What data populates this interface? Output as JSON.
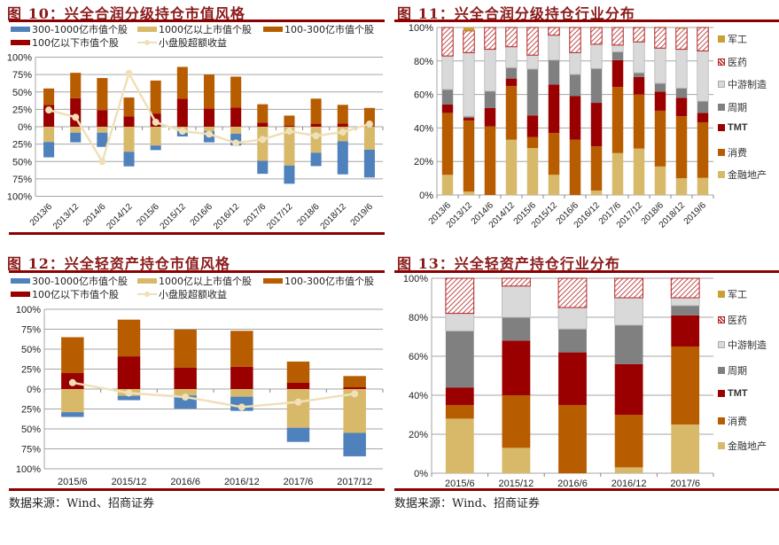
{
  "source_text": "数据来源：Wind、招商证券",
  "colors": {
    "blue": "#4f81bd",
    "gold": "#d8b96a",
    "orange": "#b85c00",
    "darkred": "#9a0000",
    "line": "#efe0b9",
    "military": "#c9a032",
    "pharma_border": "#b22222",
    "midstream": "#d9d9d9",
    "cycle": "#808080",
    "rule": "#8b0000"
  },
  "chart_data": [
    {
      "id": "fig10",
      "type": "bar",
      "stacked": "diverging",
      "title": "图 10：兴全合润分级持仓市值风格",
      "legend": [
        "300-1000亿市值个股",
        "1000亿以上市值个股",
        "100-300亿市值个股",
        "100亿以下市值个股",
        "小盘股超额收益"
      ],
      "categories": [
        "2013/6",
        "2013/12",
        "2014/6",
        "2014/12",
        "2015/6",
        "2015/12",
        "2016/6",
        "2016/12",
        "2017/6",
        "2017/12",
        "2018/6",
        "2018/12",
        "2019/6"
      ],
      "yticks": [
        "100%",
        "75%",
        "50%",
        "25%",
        "0%",
        "25%",
        "50%",
        "75%",
        "100%"
      ],
      "ylim": [
        -100,
        100
      ],
      "series": [
        {
          "name": "100亿以下市值个股",
          "side": "up",
          "values": [
            31.5,
            41,
            24,
            15,
            19,
            40.4,
            26,
            27.7,
            6,
            1.7,
            4.3,
            4.7,
            0.5
          ]
        },
        {
          "name": "100-300亿市值个股",
          "side": "up",
          "values": [
            23.5,
            36.5,
            46,
            27,
            47.4,
            45.6,
            49,
            44.3,
            26.3,
            14.3,
            36.1,
            26.8,
            26.5
          ]
        },
        {
          "name": "1000亿以上市值个股",
          "side": "down",
          "values": [
            22,
            8.5,
            8.5,
            36,
            27,
            6.4,
            6.4,
            10,
            49,
            55.7,
            37.4,
            21,
            33
          ]
        },
        {
          "name": "300-1000亿市值个股",
          "side": "down",
          "values": [
            22,
            14,
            20.5,
            21,
            6.6,
            7.6,
            16.1,
            17,
            18.7,
            26.3,
            19.2,
            47.5,
            40
          ]
        },
        {
          "name": "小盘股超额收益",
          "type": "line",
          "values": [
            24,
            13.6,
            -50,
            76.6,
            6.4,
            -6.4,
            -10.6,
            -23.4,
            -18.3,
            -6.4,
            -13,
            -7.7,
            3.8
          ]
        }
      ]
    },
    {
      "id": "fig11",
      "type": "bar",
      "stacked": "percent",
      "title": "图 11：兴全合润分级持仓行业分布",
      "legend": [
        "军工",
        "医药",
        "中游制造",
        "周期",
        "TMT",
        "消费",
        "金融地产"
      ],
      "categories": [
        "2013/6",
        "2013/12",
        "2014/6",
        "2014/12",
        "2015/6",
        "2015/12",
        "2016/6",
        "2016/12",
        "2017/6",
        "2017/12",
        "2018/6",
        "2018/12",
        "2019/6"
      ],
      "yticks": [
        "0%",
        "20%",
        "40%",
        "60%",
        "80%",
        "100%"
      ],
      "ylim": [
        0,
        100
      ],
      "series": [
        {
          "name": "金融地产",
          "values": [
            12,
            2,
            0,
            33,
            28,
            12,
            0,
            2.6,
            25,
            27.7,
            17,
            10,
            10.2
          ]
        },
        {
          "name": "消费",
          "values": [
            37,
            42.5,
            41,
            32,
            6.5,
            25,
            33,
            26.4,
            39.5,
            32.3,
            33.3,
            37,
            33.2
          ]
        },
        {
          "name": "TMT",
          "values": [
            5,
            1.5,
            11,
            4.5,
            13,
            29,
            26,
            26,
            16,
            10.5,
            11.4,
            11,
            5.6
          ]
        },
        {
          "name": "周期",
          "values": [
            9,
            1,
            10,
            6.5,
            27.7,
            14.6,
            13,
            20.5,
            5,
            2.5,
            5,
            5.8,
            7
          ]
        },
        {
          "name": "中游制造",
          "values": [
            20,
            38,
            25,
            12.5,
            8.3,
            14.8,
            13,
            14.5,
            4,
            18.4,
            21,
            23.2,
            30
          ]
        },
        {
          "name": "医药",
          "values": [
            17,
            13,
            13,
            11.5,
            16.5,
            4.6,
            15,
            10,
            10.5,
            8.6,
            12.3,
            12.6,
            14
          ]
        },
        {
          "name": "军工",
          "values": [
            0,
            2,
            0,
            0,
            0,
            0,
            0,
            0,
            0,
            0,
            0,
            0.4,
            0
          ]
        }
      ]
    },
    {
      "id": "fig12",
      "type": "bar",
      "stacked": "diverging",
      "title": "图 12：兴全轻资产持仓市值风格",
      "legend": [
        "300-1000亿市值个股",
        "1000亿以上市值个股",
        "100-300亿市值个股",
        "100亿以下市值个股",
        "小盘股超额收益"
      ],
      "categories": [
        "2015/6",
        "2015/12",
        "2016/6",
        "2016/12",
        "2017/6",
        "2017/12"
      ],
      "yticks": [
        "100%",
        "75%",
        "50%",
        "25%",
        "0%",
        "25%",
        "50%",
        "75%",
        "100%"
      ],
      "ylim": [
        -100,
        100
      ],
      "series": [
        {
          "name": "100亿以下市值个股",
          "side": "up",
          "values": [
            20,
            41,
            27,
            28,
            7.8,
            2.2
          ]
        },
        {
          "name": "100-300亿市值个股",
          "side": "up",
          "values": [
            45,
            46,
            47.5,
            45,
            26.6,
            14.1
          ]
        },
        {
          "name": "1000亿以上市值个股",
          "side": "down",
          "values": [
            29,
            8.5,
            8,
            9.6,
            48.5,
            55
          ]
        },
        {
          "name": "300-1000亿市值个股",
          "side": "down",
          "values": [
            6,
            5.5,
            16.5,
            17.8,
            17.8,
            29.4
          ]
        },
        {
          "name": "小盘股超额收益",
          "type": "line",
          "values": [
            8,
            -5,
            -10,
            -22.6,
            -16.3,
            -6
          ]
        }
      ]
    },
    {
      "id": "fig13",
      "type": "bar",
      "stacked": "percent",
      "title": "图 13：兴全轻资产持仓行业分布",
      "legend": [
        "军工",
        "医药",
        "中游制造",
        "周期",
        "TMT",
        "消费",
        "金融地产"
      ],
      "categories": [
        "2015/6",
        "2015/12",
        "2016/6",
        "2016/12",
        "2017/6"
      ],
      "yticks": [
        "0%",
        "20%",
        "40%",
        "60%",
        "80%",
        "100%"
      ],
      "ylim": [
        0,
        100
      ],
      "series": [
        {
          "name": "金融地产",
          "values": [
            28,
            13,
            0,
            3,
            25
          ]
        },
        {
          "name": "消费",
          "values": [
            7,
            27,
            35,
            27,
            40
          ]
        },
        {
          "name": "TMT",
          "values": [
            9,
            28,
            27,
            26,
            16
          ]
        },
        {
          "name": "周期",
          "values": [
            29,
            12,
            12,
            20,
            5
          ]
        },
        {
          "name": "中游制造",
          "values": [
            9,
            16,
            11,
            14,
            4
          ]
        },
        {
          "name": "医药",
          "values": [
            18,
            4,
            15,
            10,
            10
          ]
        },
        {
          "name": "军工",
          "values": [
            0,
            0,
            0,
            0,
            0
          ]
        }
      ]
    }
  ]
}
